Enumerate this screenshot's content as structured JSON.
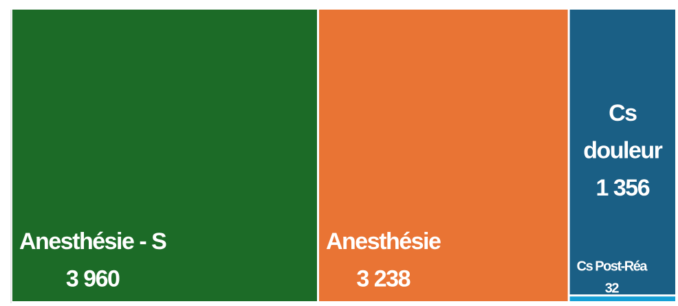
{
  "chart_data": {
    "type": "treemap",
    "categories": [
      "Anesthésie - S",
      "Anesthésie",
      "Cs douleur",
      "Cs Post-Réa"
    ],
    "values": [
      3960,
      3238,
      1356,
      32
    ],
    "value_labels": [
      "3 960",
      "3 238",
      "1 356",
      "32"
    ],
    "colors": [
      "#1c6b27",
      "#e97434",
      "#1a5f85",
      "#159fd5"
    ]
  }
}
